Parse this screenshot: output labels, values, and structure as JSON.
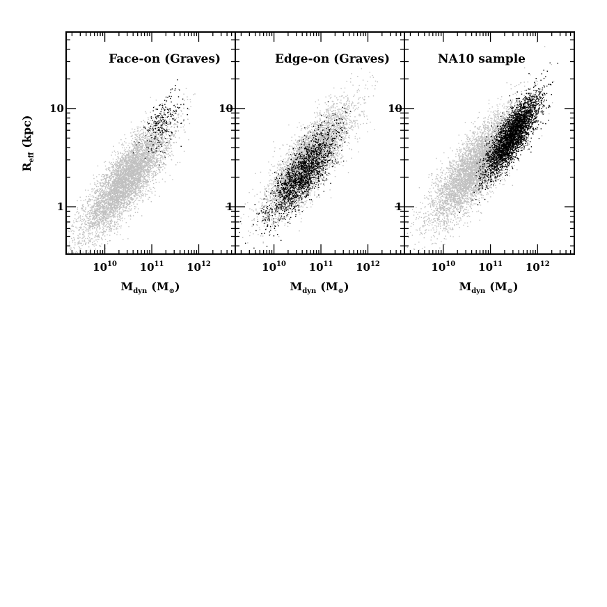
{
  "chart_data": [
    {
      "type": "scatter",
      "title": "Face-on (Graves)",
      "xlabel_main": "M",
      "xlabel_sub": "dyn",
      "xlabel_unit": "(M",
      "xlabel_unit_sub": "⊙",
      "xlabel_close": ")",
      "ylabel_main": "R",
      "ylabel_sub": "eff",
      "ylabel_unit": "(kpc)",
      "xscale": "log",
      "yscale": "log",
      "xlim": [
        1500000000.0,
        6000000000000.0
      ],
      "ylim": [
        0.33,
        60
      ],
      "x_tick_labels": [
        {
          "base": "10",
          "exp": "10"
        },
        {
          "base": "10",
          "exp": "11"
        },
        {
          "base": "10",
          "exp": "12"
        }
      ],
      "y_tick_labels": [
        "1",
        "10"
      ],
      "series": [
        {
          "color": "#c0c0c0",
          "center_logx": 10.45,
          "center_logy": 0.28,
          "sd_major": 0.52,
          "sd_minor": 0.14,
          "slope": 0.56,
          "approx_count": 9000
        },
        {
          "color": "#000000",
          "center_logx": 11.2,
          "center_logy": 0.85,
          "sd_major": 0.24,
          "sd_minor": 0.12,
          "slope": 0.6,
          "approx_count": 240
        }
      ]
    },
    {
      "type": "scatter",
      "title": "Edge-on (Graves)",
      "xlabel_main": "M",
      "xlabel_sub": "dyn",
      "xlabel_unit": "(M",
      "xlabel_unit_sub": "⊙",
      "xlabel_close": ")",
      "xscale": "log",
      "yscale": "log",
      "xlim": [
        1500000000.0,
        6000000000000.0
      ],
      "ylim": [
        0.33,
        60
      ],
      "x_tick_labels": [
        {
          "base": "10",
          "exp": "10"
        },
        {
          "base": "10",
          "exp": "11"
        },
        {
          "base": "10",
          "exp": "12"
        }
      ],
      "y_tick_labels": [
        "1",
        "10"
      ],
      "series": [
        {
          "color": "#c0c0c0",
          "center_logx": 10.75,
          "center_logy": 0.48,
          "sd_major": 0.5,
          "sd_minor": 0.14,
          "slope": 0.56,
          "approx_count": 8000
        },
        {
          "color": "#000000",
          "center_logx": 10.6,
          "center_logy": 0.33,
          "sd_major": 0.4,
          "sd_minor": 0.12,
          "slope": 0.58,
          "approx_count": 1800
        }
      ]
    },
    {
      "type": "scatter",
      "title": "NA10 sample",
      "xlabel_main": "M",
      "xlabel_sub": "dyn",
      "xlabel_unit": "(M",
      "xlabel_unit_sub": "⊙",
      "xlabel_close": ")",
      "xscale": "log",
      "yscale": "log",
      "xlim": [
        1500000000.0,
        6000000000000.0
      ],
      "ylim": [
        0.33,
        60
      ],
      "x_tick_labels": [
        {
          "base": "10",
          "exp": "10"
        },
        {
          "base": "10",
          "exp": "11"
        },
        {
          "base": "10",
          "exp": "12"
        }
      ],
      "y_tick_labels": [
        "1",
        "10"
      ],
      "series": [
        {
          "color": "#c0c0c0",
          "center_logx": 10.7,
          "center_logy": 0.42,
          "sd_major": 0.55,
          "sd_minor": 0.15,
          "slope": 0.56,
          "approx_count": 9000
        },
        {
          "color": "#000000",
          "center_logx": 11.45,
          "center_logy": 0.72,
          "sd_major": 0.33,
          "sd_minor": 0.1,
          "slope": 0.66,
          "approx_count": 3200
        }
      ]
    }
  ]
}
